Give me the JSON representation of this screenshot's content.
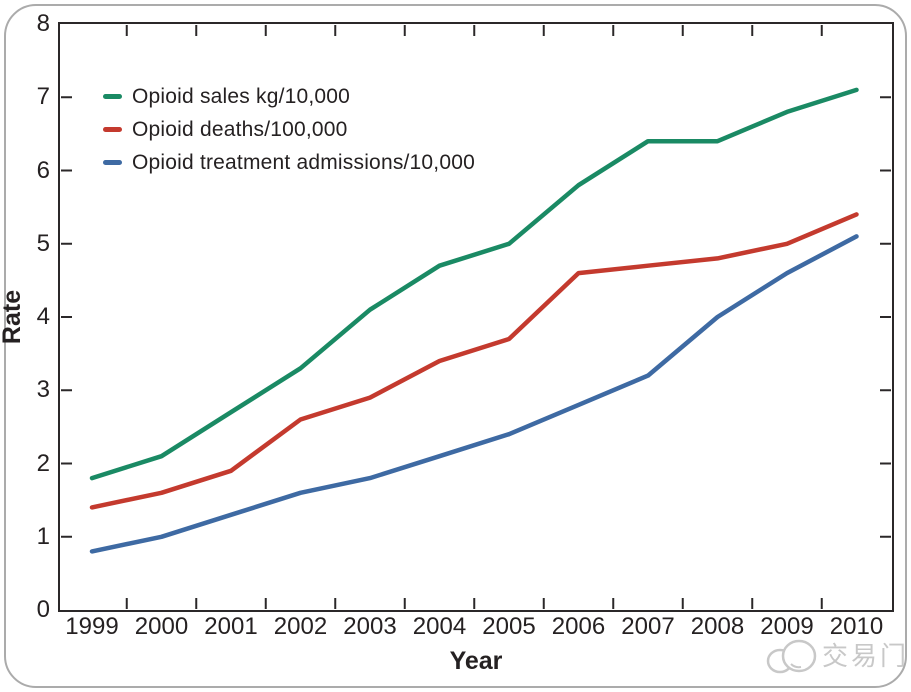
{
  "chart_data": {
    "type": "line",
    "title": "",
    "xlabel": "Year",
    "ylabel": "Rate",
    "x": [
      1999,
      2000,
      2001,
      2002,
      2003,
      2004,
      2005,
      2006,
      2007,
      2008,
      2009,
      2010
    ],
    "ylim": [
      0,
      8
    ],
    "yticks": [
      0,
      1,
      2,
      3,
      4,
      5,
      6,
      7,
      8
    ],
    "grid": false,
    "legend_position": "top-left-inside",
    "series": [
      {
        "name": "Opioid sales kg/10,000",
        "color": "#1a8a64",
        "values": [
          1.8,
          2.1,
          2.7,
          3.3,
          4.1,
          4.7,
          5.0,
          5.8,
          6.4,
          6.4,
          6.8,
          7.1
        ]
      },
      {
        "name": "Opioid deaths/100,000",
        "color": "#c43a2e",
        "values": [
          1.4,
          1.6,
          1.9,
          2.6,
          2.9,
          3.4,
          3.7,
          4.6,
          4.7,
          4.8,
          5.0,
          5.4
        ]
      },
      {
        "name": "Opioid treatment admissions/10,000",
        "color": "#3e6aa3",
        "values": [
          0.8,
          1.0,
          1.3,
          1.6,
          1.8,
          2.1,
          2.4,
          2.8,
          3.2,
          4.0,
          4.6,
          5.1
        ]
      }
    ]
  },
  "watermark": {
    "text": "交易门",
    "logo": "overlapping-bubbles-logo",
    "color": "#c8c8c8"
  },
  "styles": {
    "frame_color": "#2b2829",
    "text_color": "#252122",
    "card_border_color": "#ababab"
  }
}
